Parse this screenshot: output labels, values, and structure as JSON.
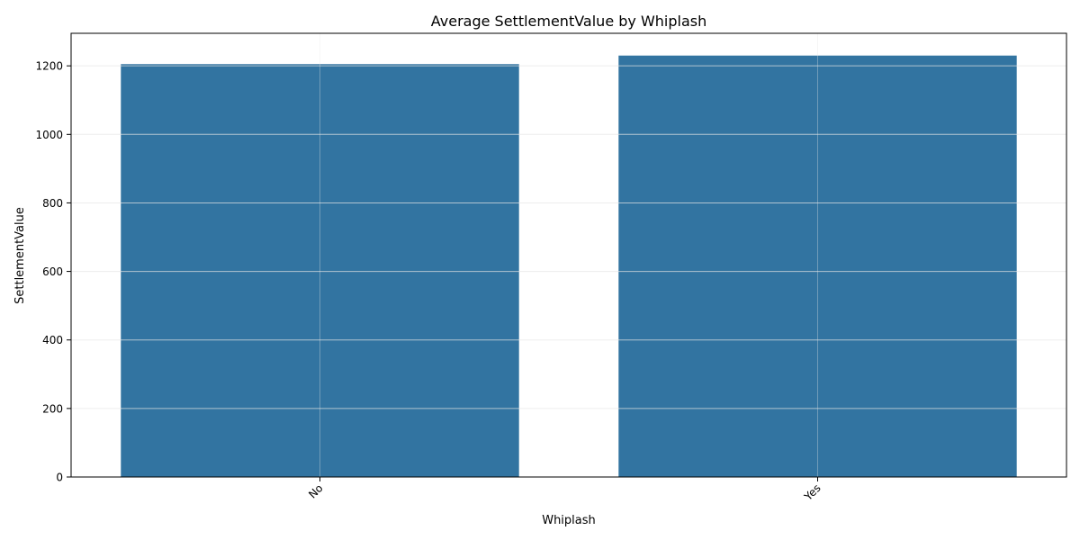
{
  "chart_data": {
    "type": "bar",
    "title": "Average SettlementValue by Whiplash",
    "xlabel": "Whiplash",
    "ylabel": "SettlementValue",
    "categories": [
      "No",
      "Yes"
    ],
    "values": [
      1205,
      1230
    ],
    "ylim": [
      0,
      1295
    ],
    "yticks": [
      0,
      200,
      400,
      600,
      800,
      1000,
      1200
    ],
    "ytick_labels": [
      "0",
      "200",
      "400",
      "600",
      "800",
      "1000",
      "1200"
    ],
    "grid": true,
    "bar_color": "#3274a1",
    "grid_color": "#e6e6e6"
  }
}
